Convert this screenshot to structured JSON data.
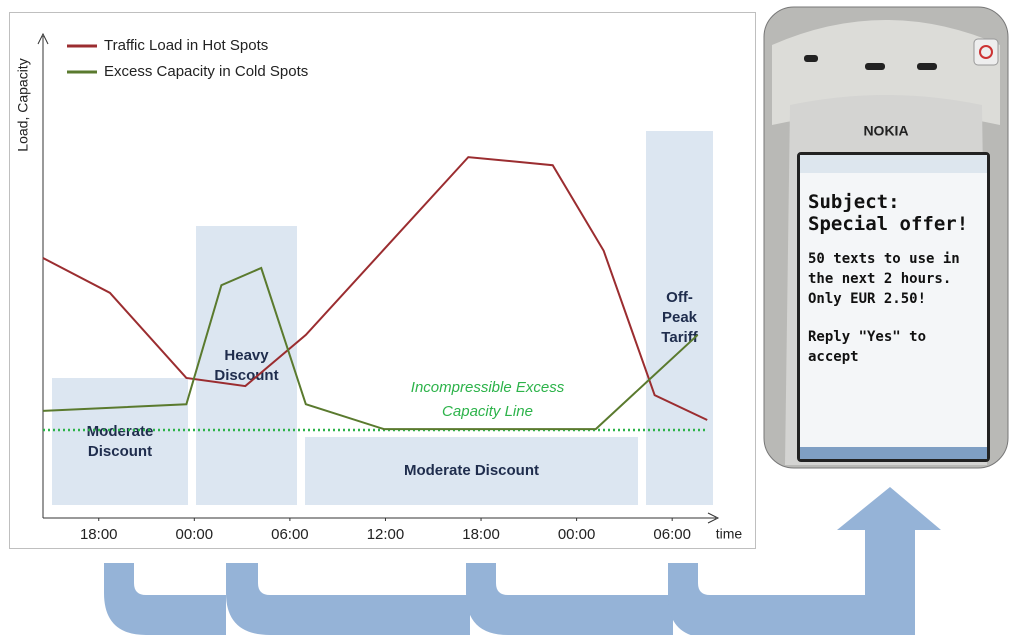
{
  "chart_data": {
    "type": "line",
    "y_label": "Load, Capacity",
    "x_label": "time",
    "xlim": [
      14.5,
      56.5
    ],
    "ylim": [
      0,
      100
    ],
    "xticks": [
      {
        "value": 18,
        "label": "18:00"
      },
      {
        "value": 24,
        "label": "00:00"
      },
      {
        "value": 30,
        "label": "06:00"
      },
      {
        "value": 36,
        "label": "12:00"
      },
      {
        "value": 42,
        "label": "18:00"
      },
      {
        "value": 48,
        "label": "00:00"
      },
      {
        "value": 54,
        "label": "06:00"
      }
    ],
    "series": [
      {
        "name": "Traffic Load in Hot Spots",
        "color": "#9b2d30",
        "x": [
          14.5,
          18.7,
          23.5,
          27.2,
          31.0,
          41.2,
          46.5,
          49.7,
          52.9,
          56.2
        ],
        "values": [
          54.4,
          47.1,
          29.3,
          27.6,
          38.3,
          75.5,
          73.8,
          55.9,
          25.7,
          20.5
        ]
      },
      {
        "name": "Excess Capacity in Cold Spots",
        "color": "#5a7a2e",
        "x": [
          14.5,
          23.5,
          25.7,
          28.2,
          31.0,
          35.9,
          49.2,
          55.6
        ],
        "values": [
          22.4,
          23.8,
          48.7,
          52.3,
          23.8,
          18.6,
          18.6,
          38.3
        ]
      }
    ],
    "reference_line": {
      "value": 18.4,
      "color": "#2db34a",
      "label": "Incompressible Excess Capacity Line"
    },
    "regions": [
      "Moderate Discount",
      "Heavy Discount",
      "Moderate Discount",
      "Off-Peak Tariff"
    ]
  },
  "phone": {
    "brand": "NOKIA",
    "subject": [
      "Subject:",
      "Special offer!"
    ],
    "body": [
      "50 texts to use in",
      "the next 2 hours.",
      "Only EUR 2.50!"
    ],
    "reply": [
      "Reply \"Yes\" to",
      "accept"
    ]
  }
}
